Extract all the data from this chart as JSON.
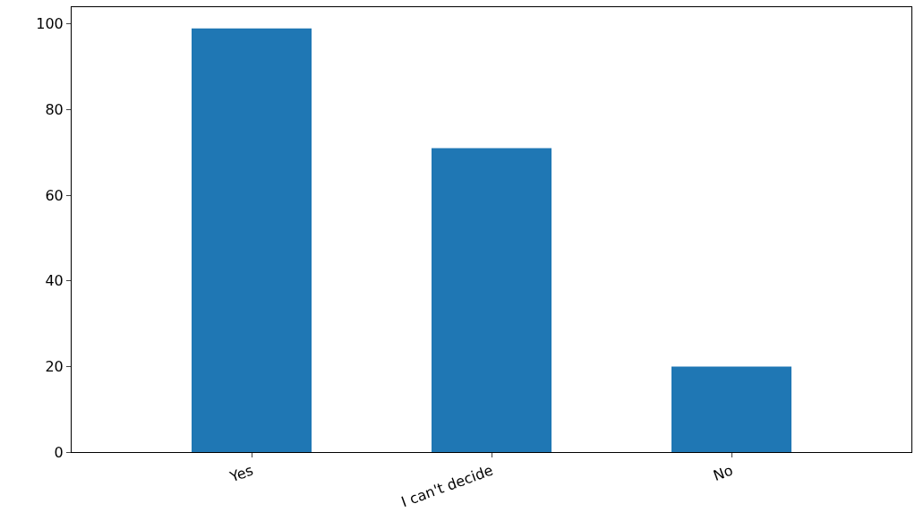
{
  "chart_data": {
    "type": "bar",
    "categories": [
      "Yes",
      "I can't decide",
      "No"
    ],
    "values": [
      99,
      71,
      20
    ],
    "color": "#1f77b4",
    "ylim": [
      0,
      103.95
    ],
    "yticks": [
      0,
      20,
      40,
      60,
      80,
      100
    ],
    "grid": false
  }
}
